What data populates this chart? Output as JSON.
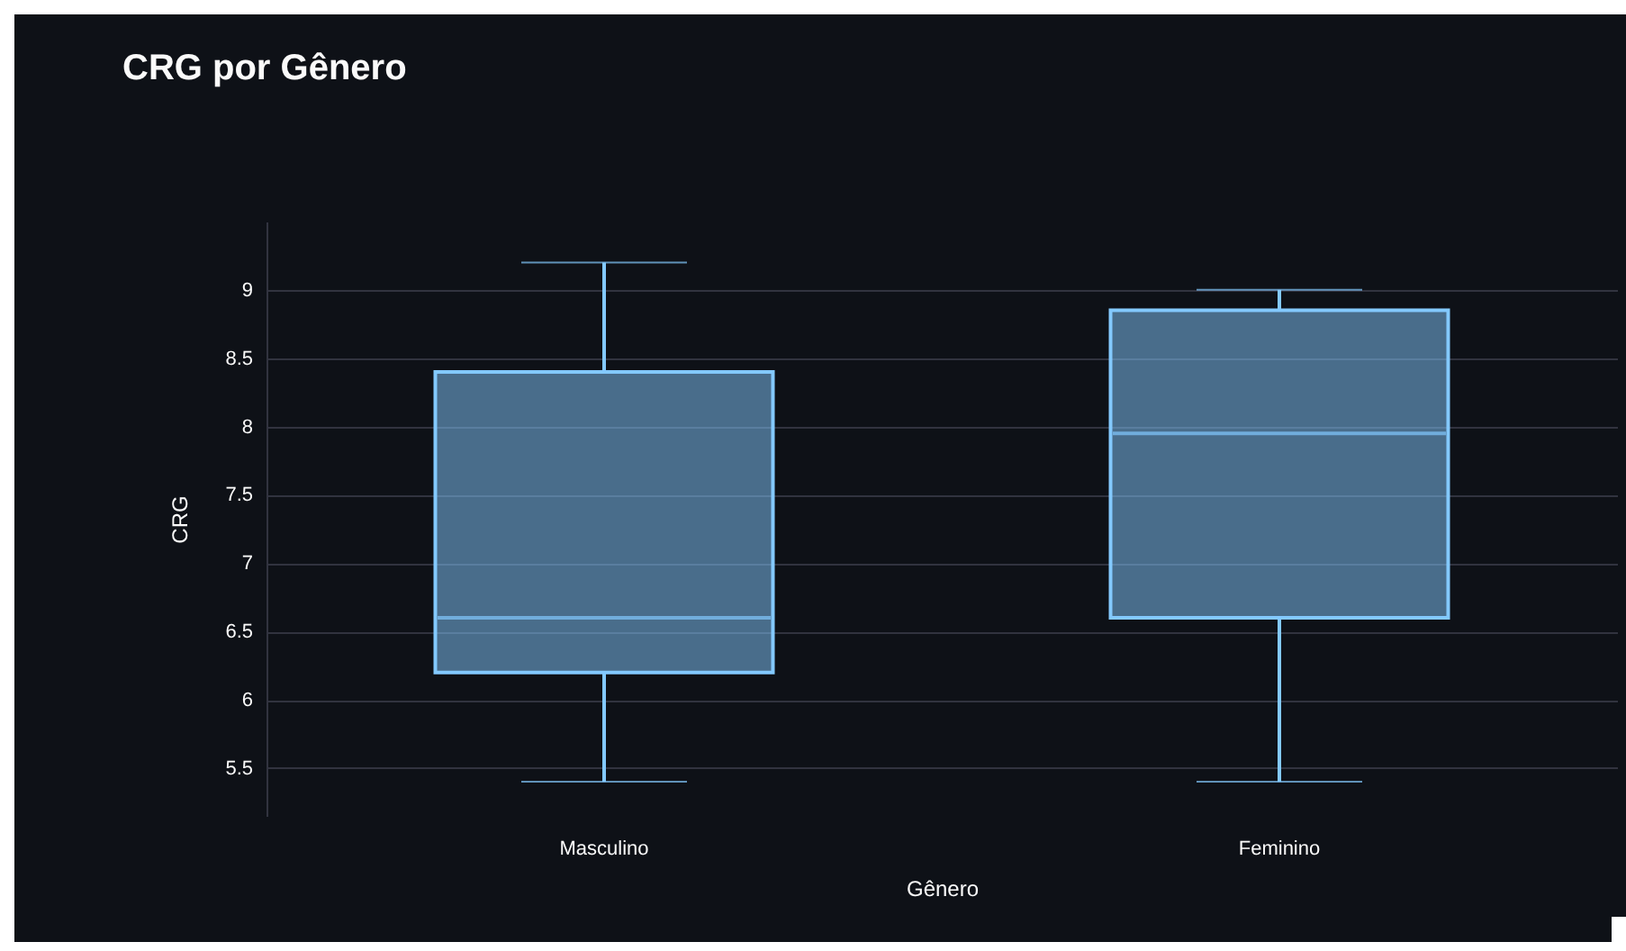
{
  "chart_data": {
    "type": "box",
    "title": "CRG por Gênero",
    "xlabel": "Gênero",
    "ylabel": "CRG",
    "categories": [
      "Masculino",
      "Feminino"
    ],
    "series": [
      {
        "color": "#83c9ff",
        "boxes": [
          {
            "low": 5.4,
            "q1": 6.2,
            "median": 6.6,
            "q3": 8.4,
            "high": 9.2
          },
          {
            "low": 5.4,
            "q1": 6.6,
            "median": 7.95,
            "q3": 8.85,
            "high": 9.0
          }
        ]
      }
    ],
    "ylim": [
      5.15,
      9.5
    ],
    "yticks": [
      5.5,
      6,
      6.5,
      7,
      7.5,
      8,
      8.5,
      9
    ],
    "grid": "y"
  }
}
